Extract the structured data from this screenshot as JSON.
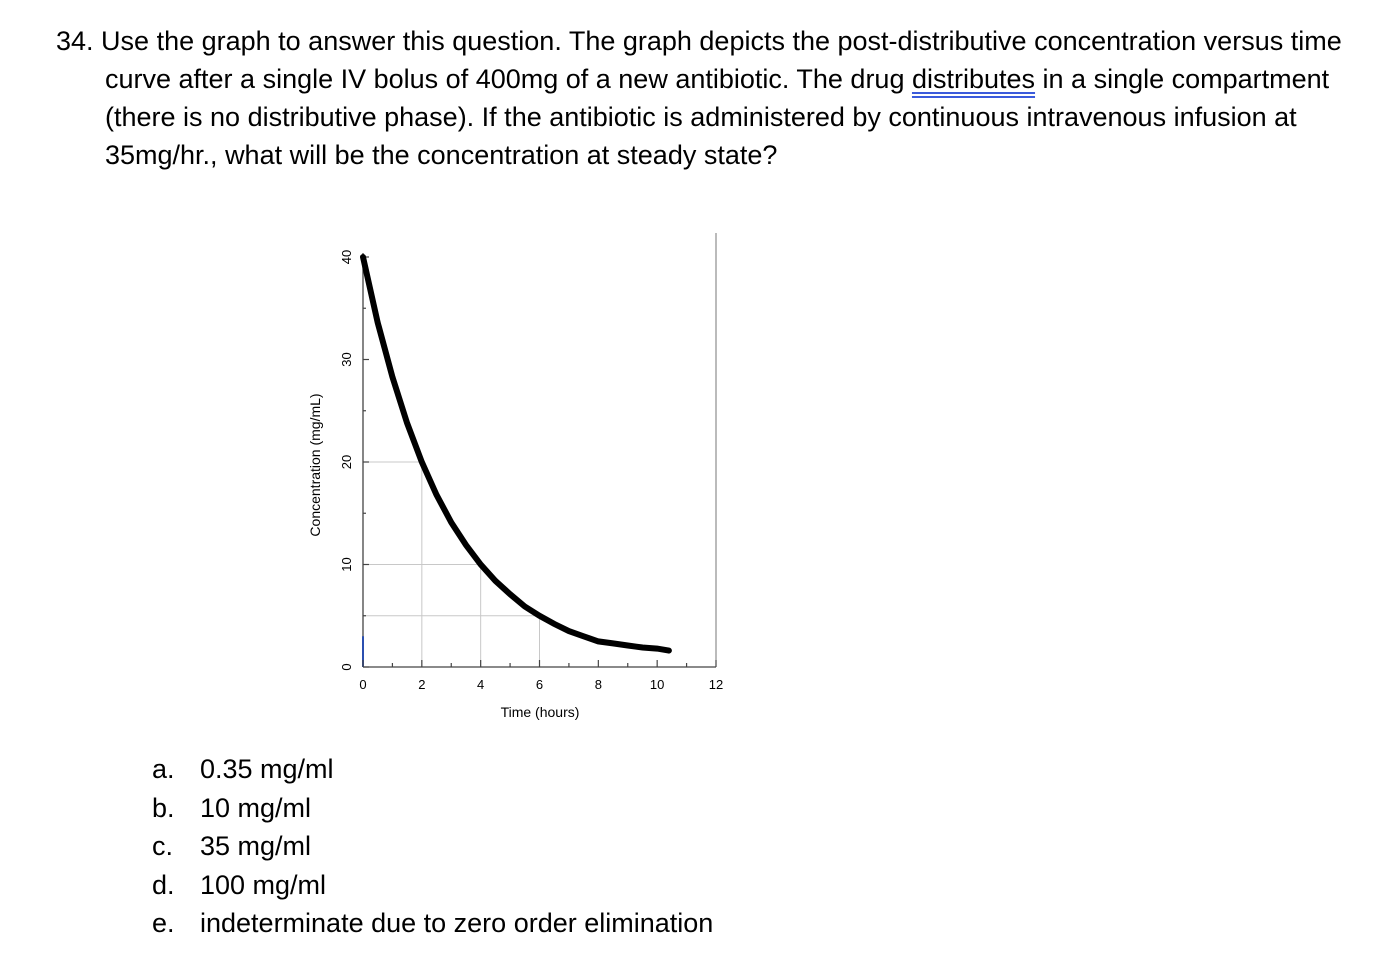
{
  "question": {
    "number": "34.",
    "text_before": " Use the graph to answer this question. The graph depicts the post-distributive concentration versus time curve after a single IV bolus of 400mg of a new antibiotic. The drug ",
    "underlined_word": "distributes",
    "text_after": " in a single compartment (there is no distributive phase).  If the antibiotic is administered by continuous intravenous infusion at 35mg/hr., what will be the concentration at steady state?"
  },
  "chart_data": {
    "type": "line",
    "xlabel": "Time (hours)",
    "ylabel": "Concentration (mg/mL)",
    "xlim": [
      0,
      12
    ],
    "ylim": [
      0,
      40
    ],
    "x_ticks": [
      "0",
      "2",
      "4",
      "6",
      "8",
      "10",
      "12"
    ],
    "y_ticks": [
      "0",
      "10",
      "20",
      "30",
      "40"
    ],
    "grid": "partial guide lines",
    "series": [
      {
        "x": [
          0,
          0.5,
          1,
          1.5,
          2,
          2.5,
          3,
          3.5,
          4,
          4.5,
          5,
          5.5,
          6,
          6.5,
          7,
          7.5,
          8,
          8.5,
          9,
          9.5,
          10,
          10.4
        ],
        "y": [
          40,
          33.6,
          28.3,
          23.8,
          20,
          16.8,
          14.1,
          11.9,
          10,
          8.4,
          7.1,
          5.9,
          5,
          4.2,
          3.5,
          3.0,
          2.5,
          2.3,
          2.1,
          1.9,
          1.8,
          1.6
        ]
      }
    ]
  },
  "answers": [
    {
      "letter": "a.",
      "text": "0.35 mg/ml"
    },
    {
      "letter": "b.",
      "text": "10 mg/ml"
    },
    {
      "letter": "c.",
      "text": "35 mg/ml"
    },
    {
      "letter": "d.",
      "text": "100 mg/ml"
    },
    {
      "letter": "e.",
      "text": "indeterminate due to zero order elimination"
    }
  ]
}
